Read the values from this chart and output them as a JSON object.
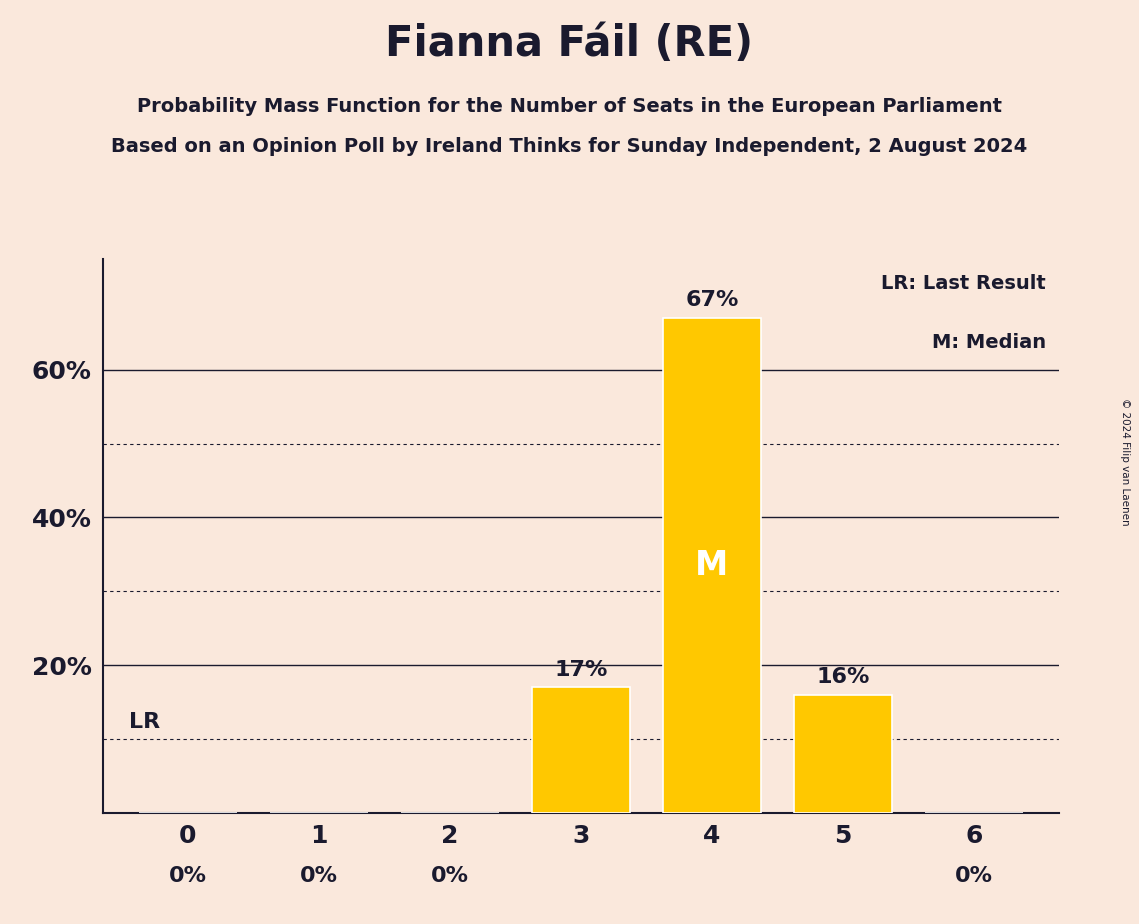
{
  "title": "Fianna Fáil (RE)",
  "subtitle1": "Probability Mass Function for the Number of Seats in the European Parliament",
  "subtitle2": "Based on an Opinion Poll by Ireland Thinks for Sunday Independent, 2 August 2024",
  "copyright": "© 2024 Filip van Laenen",
  "categories": [
    0,
    1,
    2,
    3,
    4,
    5,
    6
  ],
  "values": [
    0,
    0,
    0,
    17,
    67,
    16,
    0
  ],
  "bar_color": "#FFC800",
  "background_color": "#FAE8DC",
  "text_color": "#1A1A2E",
  "median_seat": 4,
  "legend_lr": "LR: Last Result",
  "legend_m": "M: Median",
  "solid_gridlines": [
    20,
    40,
    60
  ],
  "dotted_gridlines": [
    10,
    30,
    50
  ],
  "lr_level": 10,
  "ylim": [
    0,
    75
  ],
  "bar_width": 0.75
}
